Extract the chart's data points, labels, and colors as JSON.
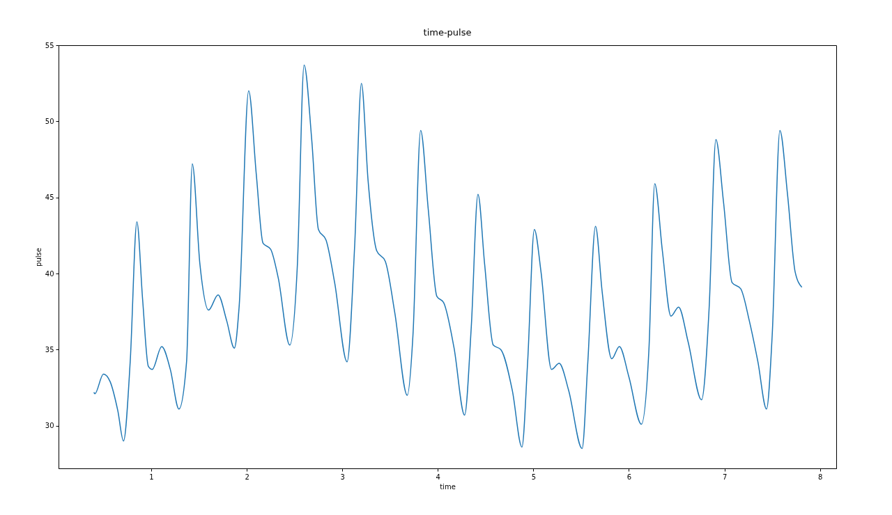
{
  "chart_data": {
    "type": "line",
    "title": "time-pulse",
    "xlabel": "time",
    "ylabel": "pulse",
    "xlim": [
      0.03,
      8.17
    ],
    "ylim": [
      27.2,
      55
    ],
    "xticks": [
      1,
      2,
      3,
      4,
      5,
      6,
      7,
      8
    ],
    "yticks": [
      30,
      35,
      40,
      45,
      50,
      55
    ],
    "grid": false,
    "series": [
      {
        "color": "#1f77b4",
        "x": [
          0.4,
          0.41,
          0.5,
          0.57,
          0.65,
          0.71,
          0.78,
          0.85,
          0.91,
          0.97,
          1.01,
          1.11,
          1.2,
          1.29,
          1.37,
          1.43,
          1.51,
          1.6,
          1.7,
          1.79,
          1.87,
          1.92,
          2.02,
          2.1,
          2.17,
          2.25,
          2.33,
          2.45,
          2.53,
          2.6,
          2.68,
          2.75,
          2.83,
          2.92,
          3.05,
          3.13,
          3.2,
          3.27,
          3.36,
          3.45,
          3.55,
          3.68,
          3.74,
          3.82,
          3.9,
          3.99,
          4.06,
          4.17,
          4.28,
          4.35,
          4.42,
          4.49,
          4.58,
          4.66,
          4.78,
          4.88,
          4.94,
          5.01,
          5.08,
          5.19,
          5.27,
          5.37,
          5.51,
          5.57,
          5.65,
          5.72,
          5.82,
          5.9,
          6.0,
          6.13,
          6.21,
          6.27,
          6.35,
          6.44,
          6.52,
          6.62,
          6.76,
          6.84,
          6.91,
          6.99,
          7.08,
          7.17,
          7.26,
          7.35,
          7.44,
          7.5,
          7.58,
          7.66,
          7.74,
          7.81
        ],
        "values": [
          32.2,
          32.1,
          33.4,
          32.9,
          31.0,
          29.0,
          34.2,
          43.4,
          38.3,
          33.9,
          33.7,
          35.2,
          33.7,
          31.1,
          34.2,
          47.2,
          40.6,
          37.6,
          38.6,
          36.9,
          35.1,
          37.8,
          52.0,
          46.5,
          42.0,
          41.6,
          39.7,
          35.3,
          40.6,
          53.7,
          48.8,
          42.9,
          42.2,
          39.4,
          34.2,
          41.9,
          52.5,
          46.1,
          41.5,
          40.8,
          37.4,
          32.0,
          36.0,
          49.4,
          44.2,
          38.5,
          38.1,
          35.1,
          30.7,
          36.5,
          45.2,
          40.6,
          35.3,
          35.0,
          32.3,
          28.6,
          34.2,
          42.9,
          40.1,
          33.7,
          34.1,
          32.3,
          28.5,
          34.2,
          43.1,
          38.8,
          34.4,
          35.2,
          33.2,
          30.1,
          35.1,
          45.9,
          41.5,
          37.2,
          37.8,
          35.5,
          31.7,
          37.8,
          48.8,
          44.7,
          39.4,
          39.0,
          36.9,
          34.2,
          31.1,
          36.0,
          49.4,
          45.2,
          40.1,
          39.1
        ]
      }
    ]
  }
}
